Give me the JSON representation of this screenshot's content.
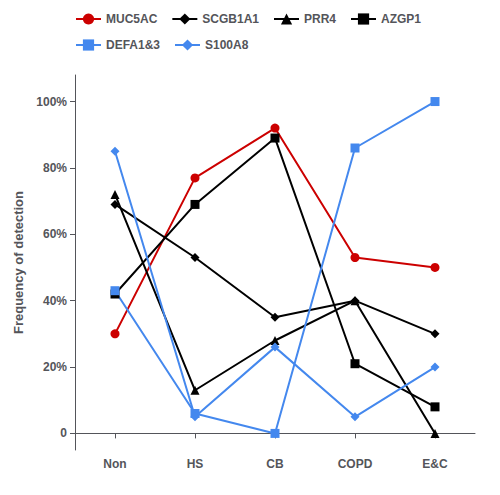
{
  "chart_data": {
    "type": "line",
    "categories": [
      "Non",
      "HS",
      "CB",
      "COPD",
      "E&C"
    ],
    "series": [
      {
        "name": "MUC5AC",
        "color": "#cc0000",
        "marker": "circle",
        "values": [
          30,
          77,
          92,
          53,
          50
        ]
      },
      {
        "name": "SCGB1A1",
        "color": "#000000",
        "marker": "diamond",
        "values": [
          69,
          53,
          35,
          40,
          30
        ]
      },
      {
        "name": "PRR4",
        "color": "#000000",
        "marker": "triangle",
        "values": [
          72,
          13,
          28,
          40,
          0
        ]
      },
      {
        "name": "AZGP1",
        "color": "#000000",
        "marker": "square",
        "values": [
          42,
          69,
          89,
          21,
          8
        ]
      },
      {
        "name": "DEFA1&3",
        "color": "#4488ee",
        "marker": "square",
        "values": [
          43,
          6,
          0,
          86,
          100
        ]
      },
      {
        "name": "S100A8",
        "color": "#4488ee",
        "marker": "diamond",
        "values": [
          85,
          5,
          26,
          5,
          20
        ]
      }
    ],
    "ylabel": "Frequency of detection",
    "ylim": [
      -5,
      108
    ],
    "yticks": [
      0,
      {
        "value": 20,
        "label": "20%"
      },
      {
        "value": 40,
        "label": "40%"
      },
      {
        "value": 60,
        "label": "60%"
      },
      {
        "value": 80,
        "label": "80%"
      },
      {
        "value": 100,
        "label": "100%"
      }
    ],
    "grid": false,
    "legend": "upper left"
  }
}
